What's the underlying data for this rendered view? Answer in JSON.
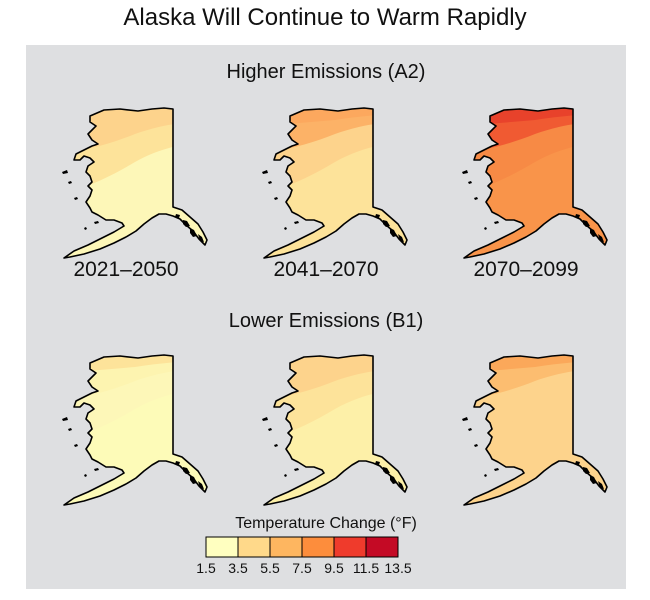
{
  "title": "Alaska Will Continue to Warm Rapidly",
  "scenarios": [
    {
      "label": "Higher Emissions (A2)",
      "maps": [
        {
          "period": "2021–2050",
          "zones": [
            "#fdf7b8",
            "#fde39a",
            "#fdd38c",
            "#fdd38c"
          ]
        },
        {
          "period": "2041–2070",
          "zones": [
            "#fde39a",
            "#fdd38c",
            "#fcb267",
            "#fca85e"
          ]
        },
        {
          "period": "2070–2099",
          "zones": [
            "#f9944a",
            "#f78a45",
            "#f05a32",
            "#e8422b"
          ]
        }
      ]
    },
    {
      "label": "Lower Emissions (B1)",
      "maps": [
        {
          "period": "2021–2050",
          "zones": [
            "#fdfbb8",
            "#fdf7b8",
            "#fdf4b0",
            "#fde39a"
          ]
        },
        {
          "period": "2041–2070",
          "zones": [
            "#fdf0a8",
            "#fde39a",
            "#fdd38c",
            "#fdd38c"
          ]
        },
        {
          "period": "2070–2099",
          "zones": [
            "#fdd38c",
            "#fdd38c",
            "#fcbd70",
            "#fba85a"
          ]
        }
      ]
    }
  ],
  "legend": {
    "title": "Temperature Change (°F)",
    "colors": [
      "#ffffc0",
      "#ffd98a",
      "#feb660",
      "#fd8d3c",
      "#ef3b2c",
      "#c40a25"
    ],
    "ticks": [
      "1.5",
      "3.5",
      "5.5",
      "7.5",
      "9.5",
      "11.5",
      "13.5"
    ]
  }
}
